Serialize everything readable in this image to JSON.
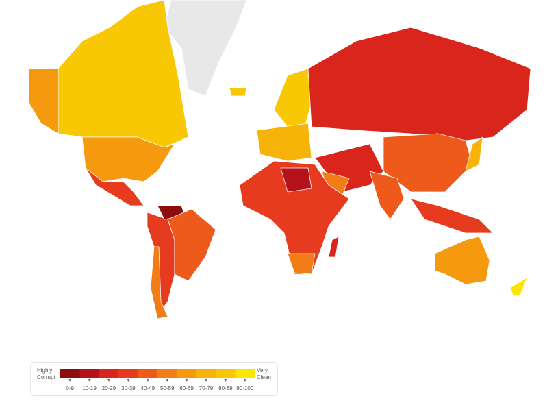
{
  "legend": {
    "low_label": [
      "Highly",
      "Corrupt"
    ],
    "high_label": [
      "Very",
      "Clean"
    ],
    "bins": [
      {
        "label": "0-9",
        "color": "#8b0d0d"
      },
      {
        "label": "10-19",
        "color": "#b5121b"
      },
      {
        "label": "20-29",
        "color": "#d9251c"
      },
      {
        "label": "30-39",
        "color": "#e63b1f"
      },
      {
        "label": "40-49",
        "color": "#ee5a1c"
      },
      {
        "label": "50-59",
        "color": "#f27c16"
      },
      {
        "label": "60-69",
        "color": "#f59a0e"
      },
      {
        "label": "70-79",
        "color": "#f8b309"
      },
      {
        "label": "80-89",
        "color": "#f9c805"
      },
      {
        "label": "90-100",
        "color": "#fae600"
      }
    ]
  }
}
